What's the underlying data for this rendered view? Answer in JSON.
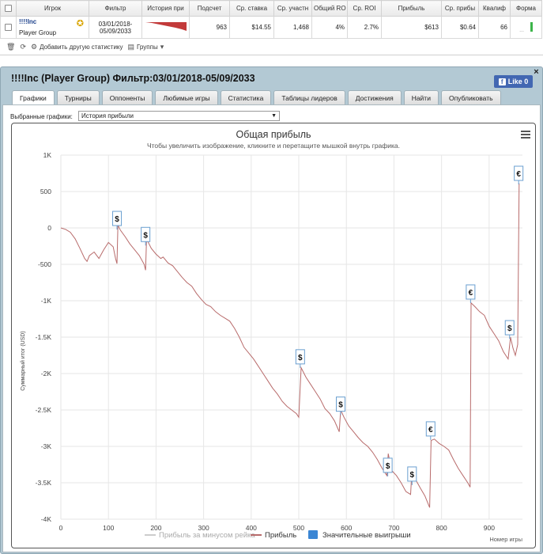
{
  "stats": {
    "headers": [
      "",
      "Игрок",
      "Фильтр",
      "История при",
      "Подсчет",
      "Ср. ставка",
      "Ср. участн",
      "Общий RO",
      "Ср. ROI",
      "Прибыль",
      "Ср. прибы",
      "Квалиф",
      "Форма"
    ],
    "row": {
      "player": "!!!!Inc",
      "group": "Player Group",
      "filter_from": "03/01/2018-",
      "filter_to": "05/09/2033",
      "count": "963",
      "avg_stake": "$14.55",
      "avg_entrants": "1,468",
      "total_roi": "4%",
      "avg_roi": "2.7%",
      "profit": "$613",
      "avg_profit": "$0.64",
      "qualif": "66",
      "form_dots": "..."
    }
  },
  "toolbar": {
    "add_stat": "Добавить другую статистику",
    "groups": "Группы"
  },
  "panel": {
    "title": "!!!!Inc (Player Group) Фильтр:03/01/2018-05/09/2033",
    "close": "×",
    "like_label": "Like 0",
    "tabs": [
      "Графики",
      "Турниры",
      "Оппоненты",
      "Любимые игры",
      "Статистика",
      "Таблицы лидеров",
      "Достижения",
      "Найти",
      "Опубликовать"
    ],
    "select_label": "Выбранные графики:",
    "select_value": "История прибыли"
  },
  "chart_data": {
    "type": "line",
    "title": "Общая прибыль",
    "subtitle": "Чтобы увеличить изображение, кликните и перетащите мышкой внутрь графика.",
    "xlabel": "Номер игры",
    "ylabel": "Суммарный итог (USD)",
    "xlim": [
      0,
      970
    ],
    "ylim": [
      -4000,
      1000
    ],
    "x_ticks": [
      0,
      100,
      200,
      300,
      400,
      500,
      600,
      700,
      800,
      900
    ],
    "y_ticks": [
      1000,
      500,
      0,
      -500,
      -1000,
      -1500,
      -2000,
      -2500,
      -3000,
      -3500,
      -4000
    ],
    "y_tick_labels": [
      "1K",
      "500",
      "0",
      "-500",
      "-1K",
      "-1.5K",
      "-2K",
      "-2.5K",
      "-3K",
      "-3.5K",
      "-4K"
    ],
    "series": [
      {
        "name": "Прибыль",
        "color": "#b86b6b",
        "points": [
          [
            0,
            0
          ],
          [
            10,
            -20
          ],
          [
            20,
            -60
          ],
          [
            30,
            -150
          ],
          [
            40,
            -280
          ],
          [
            50,
            -420
          ],
          [
            55,
            -460
          ],
          [
            60,
            -380
          ],
          [
            70,
            -330
          ],
          [
            80,
            -420
          ],
          [
            90,
            -300
          ],
          [
            100,
            -200
          ],
          [
            110,
            -260
          ],
          [
            115,
            -420
          ],
          [
            118,
            -490
          ],
          [
            120,
            40
          ],
          [
            125,
            -30
          ],
          [
            135,
            -120
          ],
          [
            145,
            -220
          ],
          [
            155,
            -300
          ],
          [
            165,
            -380
          ],
          [
            175,
            -500
          ],
          [
            178,
            -580
          ],
          [
            180,
            -150
          ],
          [
            190,
            -280
          ],
          [
            200,
            -360
          ],
          [
            210,
            -420
          ],
          [
            215,
            -400
          ],
          [
            225,
            -480
          ],
          [
            235,
            -520
          ],
          [
            245,
            -600
          ],
          [
            255,
            -680
          ],
          [
            265,
            -750
          ],
          [
            275,
            -800
          ],
          [
            285,
            -900
          ],
          [
            295,
            -980
          ],
          [
            305,
            -1050
          ],
          [
            315,
            -1080
          ],
          [
            325,
            -1150
          ],
          [
            335,
            -1200
          ],
          [
            345,
            -1240
          ],
          [
            355,
            -1280
          ],
          [
            365,
            -1380
          ],
          [
            375,
            -1500
          ],
          [
            385,
            -1640
          ],
          [
            395,
            -1720
          ],
          [
            405,
            -1800
          ],
          [
            415,
            -1900
          ],
          [
            425,
            -2000
          ],
          [
            435,
            -2100
          ],
          [
            445,
            -2200
          ],
          [
            455,
            -2280
          ],
          [
            465,
            -2380
          ],
          [
            475,
            -2450
          ],
          [
            485,
            -2500
          ],
          [
            495,
            -2550
          ],
          [
            500,
            -2600
          ],
          [
            505,
            -1920
          ],
          [
            515,
            -2050
          ],
          [
            525,
            -2150
          ],
          [
            535,
            -2250
          ],
          [
            545,
            -2350
          ],
          [
            555,
            -2480
          ],
          [
            565,
            -2550
          ],
          [
            575,
            -2650
          ],
          [
            585,
            -2800
          ],
          [
            588,
            -2500
          ],
          [
            595,
            -2600
          ],
          [
            605,
            -2720
          ],
          [
            615,
            -2800
          ],
          [
            625,
            -2880
          ],
          [
            635,
            -2950
          ],
          [
            645,
            -3000
          ],
          [
            655,
            -3080
          ],
          [
            665,
            -3180
          ],
          [
            675,
            -3300
          ],
          [
            685,
            -3400
          ],
          [
            688,
            -3100
          ],
          [
            695,
            -3330
          ],
          [
            705,
            -3400
          ],
          [
            715,
            -3500
          ],
          [
            725,
            -3620
          ],
          [
            735,
            -3660
          ],
          [
            738,
            -3300
          ],
          [
            745,
            -3450
          ],
          [
            755,
            -3570
          ],
          [
            765,
            -3680
          ],
          [
            775,
            -3840
          ],
          [
            778,
            -2920
          ],
          [
            785,
            -2900
          ],
          [
            795,
            -2960
          ],
          [
            805,
            -3000
          ],
          [
            815,
            -3050
          ],
          [
            825,
            -3180
          ],
          [
            835,
            -3300
          ],
          [
            845,
            -3400
          ],
          [
            855,
            -3500
          ],
          [
            860,
            -3560
          ],
          [
            862,
            -1030
          ],
          [
            870,
            -1080
          ],
          [
            880,
            -1150
          ],
          [
            890,
            -1200
          ],
          [
            900,
            -1350
          ],
          [
            910,
            -1450
          ],
          [
            920,
            -1550
          ],
          [
            930,
            -1700
          ],
          [
            940,
            -1800
          ],
          [
            945,
            -1500
          ],
          [
            950,
            -1650
          ],
          [
            955,
            -1750
          ],
          [
            960,
            -1600
          ],
          [
            963,
            613
          ]
        ]
      },
      {
        "name": "Прибыль за минусом рейка",
        "color": "#cccccc",
        "points": []
      }
    ],
    "markers": [
      {
        "x": 118,
        "y": 130,
        "label": "$"
      },
      {
        "x": 178,
        "y": -90,
        "label": "$"
      },
      {
        "x": 503,
        "y": -1770,
        "label": "$"
      },
      {
        "x": 588,
        "y": -2420,
        "label": "$"
      },
      {
        "x": 687,
        "y": -3260,
        "label": "$"
      },
      {
        "x": 738,
        "y": -3380,
        "label": "$"
      },
      {
        "x": 777,
        "y": -2760,
        "label": "€"
      },
      {
        "x": 861,
        "y": -880,
        "label": "€"
      },
      {
        "x": 943,
        "y": -1370,
        "label": "$"
      },
      {
        "x": 962,
        "y": 750,
        "label": "€"
      }
    ],
    "legend": [
      {
        "label": "Прибыль за минусом рейка",
        "color": "#cccccc",
        "kind": "line"
      },
      {
        "label": "Прибыль",
        "color": "#b86b6b",
        "kind": "line"
      },
      {
        "label": "Значительные выигрыши",
        "color": "#3b86d4",
        "kind": "box"
      }
    ],
    "legend_position": "bottom",
    "grid": true
  }
}
